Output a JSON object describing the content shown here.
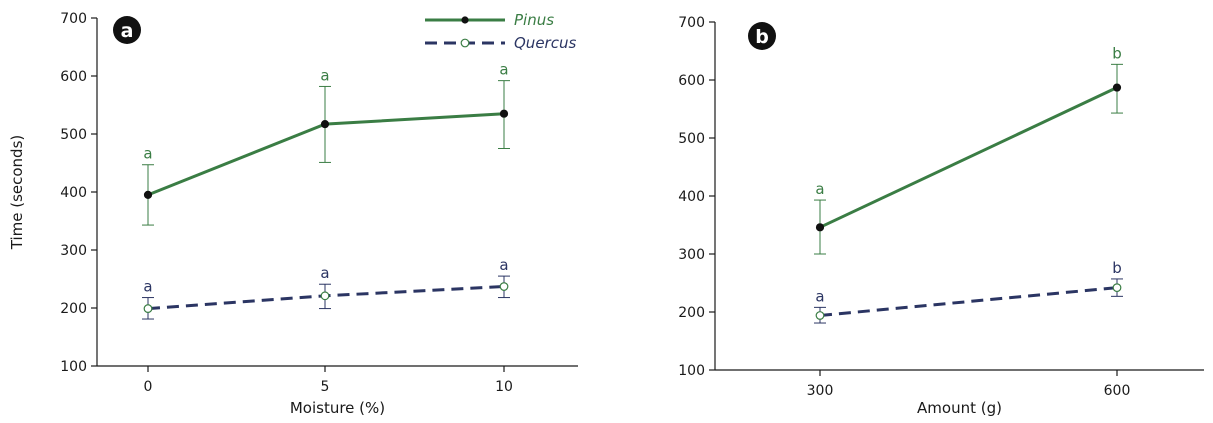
{
  "chart_data": [
    {
      "type": "line",
      "panel_label": "a",
      "xlabel": "Moisture (%)",
      "ylabel": "Time (seconds)",
      "ylim": [
        100,
        700
      ],
      "yticks": [
        100,
        200,
        300,
        400,
        500,
        600,
        700
      ],
      "categories": [
        "0",
        "5",
        "10"
      ],
      "grid": false,
      "legend": "top-right",
      "series": [
        {
          "name": "Pinus",
          "color": "#3a7d44",
          "dashed": false,
          "marker": "filled",
          "values": [
            395,
            517,
            535
          ],
          "err_low": [
            343,
            451,
            475
          ],
          "err_high": [
            447,
            582,
            592
          ],
          "labels": [
            "a",
            "a",
            "a"
          ]
        },
        {
          "name": "Quercus",
          "color": "#2b3563",
          "dashed": true,
          "marker": "open",
          "values": [
            199,
            221,
            237
          ],
          "err_low": [
            181,
            199,
            218
          ],
          "err_high": [
            218,
            241,
            255
          ],
          "labels": [
            "a",
            "a",
            "a"
          ]
        }
      ]
    },
    {
      "type": "line",
      "panel_label": "b",
      "xlabel": "Amount (g)",
      "ylabel": "",
      "ylim": [
        100,
        700
      ],
      "yticks": [
        100,
        200,
        300,
        400,
        500,
        600,
        700
      ],
      "categories": [
        "300",
        "600"
      ],
      "grid": false,
      "series": [
        {
          "color": "#3a7d44",
          "dashed": false,
          "marker": "filled",
          "values": [
            346,
            587
          ],
          "err_low": [
            300,
            543
          ],
          "err_high": [
            393,
            627
          ],
          "labels": [
            "a",
            "b"
          ]
        },
        {
          "color": "#2b3563",
          "dashed": true,
          "marker": "open",
          "values": [
            194,
            242
          ],
          "err_low": [
            181,
            227
          ],
          "err_high": [
            208,
            257
          ],
          "labels": [
            "a",
            "b"
          ]
        }
      ]
    }
  ]
}
